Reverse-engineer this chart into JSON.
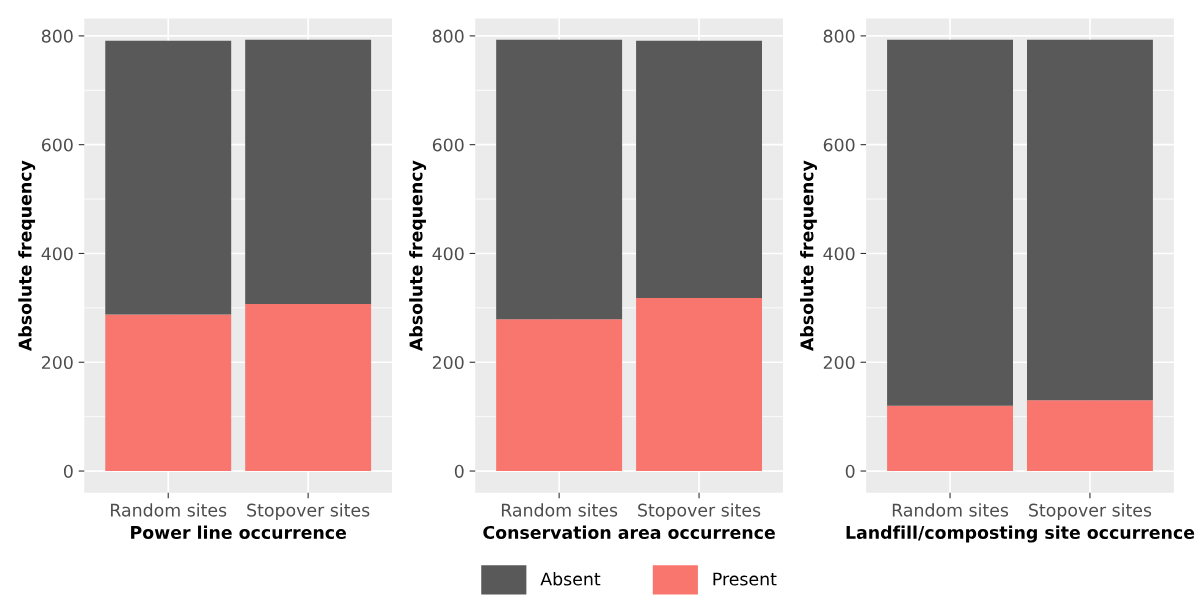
{
  "chart_data": [
    {
      "type": "bar",
      "stacked": true,
      "xlabel": "Power line occurrence",
      "ylabel": "Absolute frequency",
      "categories": [
        "Random sites",
        "Stopover sites"
      ],
      "ylim": [
        -40,
        832
      ],
      "yticks": [
        0,
        200,
        400,
        600,
        800
      ],
      "grid": true,
      "legend": false,
      "series": [
        {
          "color": "#f8766d",
          "values": [
            288,
            307
          ]
        },
        {
          "color": "#595959",
          "values": [
            503,
            486
          ]
        }
      ]
    },
    {
      "type": "bar",
      "stacked": true,
      "xlabel": "Conservation area occurrence",
      "ylabel": "Absolute frequency",
      "categories": [
        "Random sites",
        "Stopover sites"
      ],
      "ylim": [
        -40,
        832
      ],
      "yticks": [
        0,
        200,
        400,
        600,
        800
      ],
      "grid": true,
      "legend": "bottom",
      "series": [
        {
          "name": "Present",
          "color": "#f8766d",
          "values": [
            279,
            318
          ]
        },
        {
          "name": "Absent",
          "color": "#595959",
          "values": [
            514,
            473
          ]
        }
      ]
    },
    {
      "type": "bar",
      "stacked": true,
      "xlabel": "Landfill/composting site occurrence",
      "ylabel": "Absolute frequency",
      "categories": [
        "Random sites",
        "Stopover sites"
      ],
      "ylim": [
        -40,
        832
      ],
      "yticks": [
        0,
        200,
        400,
        600,
        800
      ],
      "grid": true,
      "legend": false,
      "series": [
        {
          "color": "#f8766d",
          "values": [
            120,
            130
          ]
        },
        {
          "color": "#595959",
          "values": [
            673,
            663
          ]
        }
      ]
    }
  ]
}
